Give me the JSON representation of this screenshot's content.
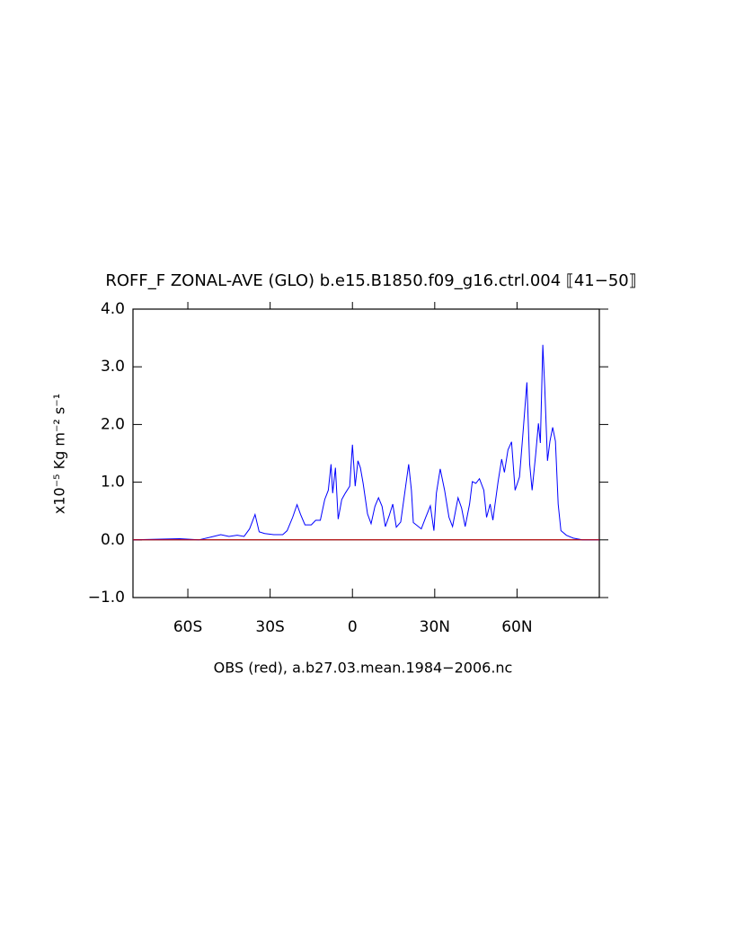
{
  "chart_data": {
    "type": "line",
    "title": "ROFF_F ZONAL-AVE (GLO) b.e15.B1850.f09_g16.ctrl.004 ⟦41−50⟧",
    "x_label": "OBS (red), a.b27.03.mean.1984−2006.nc",
    "y_label": "x10⁻⁵ Kg m⁻² s⁻¹",
    "xlim": [
      -80,
      90
    ],
    "ylim": [
      -1,
      4
    ],
    "xticks": [
      {
        "value": -60,
        "label": "60S"
      },
      {
        "value": -30,
        "label": "30S"
      },
      0,
      {
        "value": 30,
        "label": "30N"
      },
      {
        "value": 60,
        "label": "60N"
      }
    ],
    "yticks": [
      {
        "value": -1,
        "label": "−1.0"
      },
      {
        "value": 0,
        "label": "0.0"
      },
      {
        "value": 1,
        "label": "1.0"
      },
      {
        "value": 2,
        "label": "2.0"
      },
      {
        "value": 3,
        "label": "3.0"
      },
      {
        "value": 4,
        "label": "4.0"
      }
    ],
    "series": [
      {
        "color": "#0000ff",
        "x": [
          -80,
          -63,
          -56,
          -51.5,
          -48,
          -45,
          -42,
          -39.5,
          -37.5,
          -35.5,
          -34,
          -32,
          -28.7,
          -25.4,
          -23.8,
          -21.8,
          -20.2,
          -18.9,
          -17.3,
          -15,
          -13.4,
          -11.7,
          -10.1,
          -8.8,
          -7.8,
          -7.2,
          -6.2,
          -5.2,
          -3.9,
          -2.6,
          -1,
          0,
          1,
          2,
          2.9,
          3.9,
          5.5,
          6.8,
          8.2,
          9.5,
          10.8,
          12,
          13.4,
          14.7,
          16,
          17.6,
          19.2,
          20.5,
          21.5,
          22.2,
          25.1,
          26.7,
          28.4,
          29.7,
          30.6,
          32,
          33.6,
          35.2,
          36.5,
          38.5,
          39.8,
          41.1,
          42.7,
          43.7,
          45,
          46.3,
          47.9,
          48.9,
          50.2,
          51.2,
          53.1,
          54.4,
          55.4,
          56.7,
          58,
          59.3,
          60.9,
          62.2,
          63.6,
          64.6,
          65.5,
          66.8,
          67.8,
          68.5,
          69.4,
          70.1,
          71.1,
          72,
          73,
          74,
          75,
          76,
          78,
          80.5,
          83.8,
          90
        ],
        "values": [
          0,
          0.02,
          0,
          0.05,
          0.09,
          0.06,
          0.08,
          0.06,
          0.19,
          0.44,
          0.14,
          0.11,
          0.09,
          0.09,
          0.16,
          0.39,
          0.61,
          0.44,
          0.26,
          0.26,
          0.34,
          0.34,
          0.7,
          0.86,
          1.31,
          0.81,
          1.25,
          0.36,
          0.7,
          0.81,
          0.93,
          1.65,
          0.93,
          1.37,
          1.25,
          0.98,
          0.45,
          0.28,
          0.58,
          0.73,
          0.58,
          0.23,
          0.42,
          0.62,
          0.22,
          0.31,
          0.86,
          1.31,
          0.86,
          0.3,
          0.19,
          0.39,
          0.59,
          0.16,
          0.81,
          1.23,
          0.86,
          0.39,
          0.23,
          0.73,
          0.55,
          0.23,
          0.62,
          1.01,
          0.98,
          1.06,
          0.86,
          0.39,
          0.62,
          0.34,
          1.01,
          1.4,
          1.17,
          1.56,
          1.7,
          0.86,
          1.09,
          1.87,
          2.73,
          1.32,
          0.86,
          1.48,
          2.02,
          1.68,
          3.38,
          2.65,
          1.37,
          1.71,
          1.95,
          1.71,
          0.62,
          0.16,
          0.08,
          0.03,
          0,
          0
        ]
      },
      {
        "color": "#cc0000",
        "x": [
          -80,
          90
        ],
        "values": [
          0,
          0
        ]
      }
    ]
  }
}
